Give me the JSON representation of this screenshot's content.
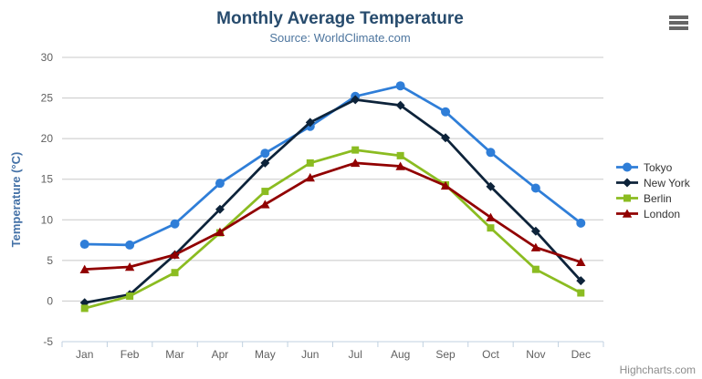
{
  "header": {
    "title": "Monthly Average Temperature",
    "subtitle": "Source: WorldClimate.com"
  },
  "export_menu": {
    "icon": "hamburger-icon"
  },
  "credits": {
    "label": "Highcharts.com"
  },
  "chart_data": {
    "type": "line",
    "title": "Monthly Average Temperature",
    "subtitle": "Source: WorldClimate.com",
    "xlabel": "",
    "ylabel": "Temperature (°C)",
    "ylim": [
      -5,
      30
    ],
    "ytick_step": 5,
    "grid": true,
    "legend_position": "right",
    "categories": [
      "Jan",
      "Feb",
      "Mar",
      "Apr",
      "May",
      "Jun",
      "Jul",
      "Aug",
      "Sep",
      "Oct",
      "Nov",
      "Dec"
    ],
    "series": [
      {
        "name": "Tokyo",
        "color": "#2f7ed8",
        "marker": "circle",
        "values": [
          7.0,
          6.9,
          9.5,
          14.5,
          18.2,
          21.5,
          25.2,
          26.5,
          23.3,
          18.3,
          13.9,
          9.6
        ]
      },
      {
        "name": "New York",
        "color": "#0d233a",
        "marker": "diamond",
        "values": [
          -0.2,
          0.8,
          5.7,
          11.3,
          17.0,
          22.0,
          24.8,
          24.1,
          20.1,
          14.1,
          8.6,
          2.5
        ]
      },
      {
        "name": "Berlin",
        "color": "#8bbc21",
        "marker": "square",
        "values": [
          -0.9,
          0.6,
          3.5,
          8.4,
          13.5,
          17.0,
          18.6,
          17.9,
          14.3,
          9.0,
          3.9,
          1.0
        ]
      },
      {
        "name": "London",
        "color": "#910000",
        "marker": "triangle",
        "values": [
          3.9,
          4.2,
          5.7,
          8.5,
          11.9,
          15.2,
          17.0,
          16.6,
          14.2,
          10.3,
          6.6,
          4.8
        ]
      }
    ],
    "styles": {
      "title_color": "#274b6d",
      "subtitle_color": "#4d759e",
      "axis_label_color": "#606060",
      "axis_title_color": "#4572a7",
      "grid_color": "#c8c8c8",
      "axis_line_color": "#c0d0e0",
      "legend_text_color": "#333333",
      "credits_color": "#8c8c8c",
      "menu_icon_color": "#666666"
    }
  }
}
